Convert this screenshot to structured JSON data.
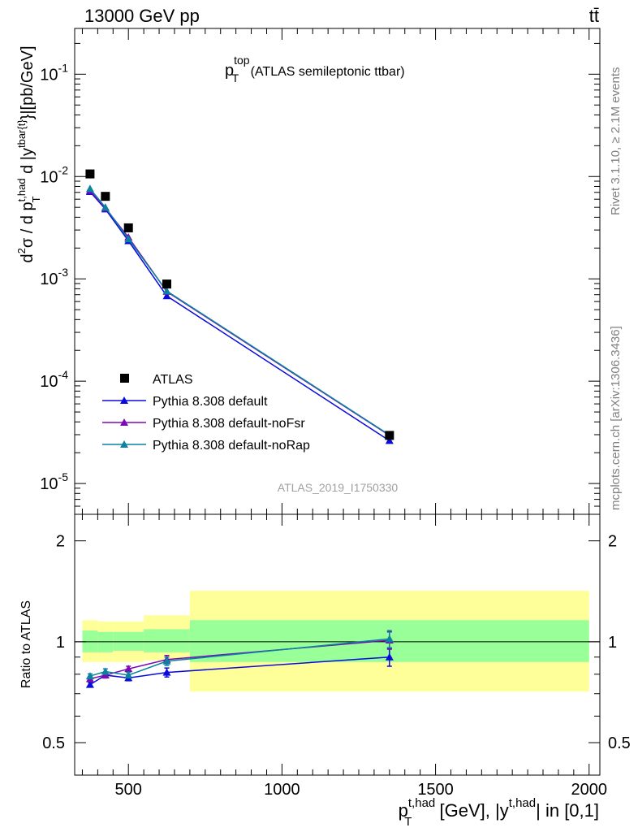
{
  "header": {
    "left": "13000 GeV pp",
    "right": "tt̄"
  },
  "side_labels": {
    "rivet": "Rivet 3.1.10, ≥ 2.1M events",
    "mcplots": "mcplots.cern.ch [arXiv:1306.3436]"
  },
  "chart_data": [
    {
      "type": "line",
      "panel": "main",
      "title_main": "p",
      "title_sup": "top",
      "title_sub": "T",
      "title_rest": " (ATLAS semileptonic ttbar)",
      "watermark": "ATLAS_2019_I1750330",
      "ylabel": "d²σ / d pT^t,had d |y^tbar{t}|[pb/GeV]",
      "yscale": "log",
      "ylim": [
        5e-06,
        0.28
      ],
      "xlim": [
        325,
        2035
      ],
      "y_tick_labels": {
        "1e-1": "10^-1",
        "1e-2": "10^-2",
        "1e-3": "10^-3",
        "1e-4": "10^-4",
        "1e-5": "10^-5"
      },
      "legend_position": "center-left",
      "series": [
        {
          "name": "ATLAS",
          "marker": "square",
          "color": "#000000",
          "x": [
            375,
            425,
            500,
            625,
            1350
          ],
          "y": [
            0.0106,
            0.0064,
            0.00315,
            0.00089,
            2.95e-05
          ]
        },
        {
          "name": "Pythia 8.308 default",
          "marker": "triangle",
          "color": "#0a0adc",
          "x": [
            375,
            425,
            500,
            625,
            1350
          ],
          "y": [
            0.0071,
            0.0048,
            0.00235,
            0.00068,
            2.62e-05
          ]
        },
        {
          "name": "Pythia 8.308 default-noFsr",
          "marker": "triangle",
          "color": "#7d0ab4",
          "x": [
            375,
            425,
            500,
            625,
            1350
          ],
          "y": [
            0.0073,
            0.0049,
            0.00255,
            0.00075,
            2.95e-05
          ]
        },
        {
          "name": "Pythia 8.308 default-noRap",
          "marker": "triangle",
          "color": "#0a82a0",
          "x": [
            375,
            425,
            500,
            625,
            1350
          ],
          "y": [
            0.0076,
            0.005,
            0.00245,
            0.00076,
            2.98e-05
          ]
        }
      ]
    },
    {
      "type": "line",
      "panel": "ratio",
      "ylabel": "Ratio to ATLAS",
      "xlabel": "pT^t,had [GeV], |y^t,had| in [0,1]",
      "xlabel_parts": {
        "p": "p",
        "sub": "T",
        "sup1": "t,had",
        "mid": " [GeV], |y",
        "sup2": "t,had",
        "end": "| in [0,1]"
      },
      "xlim": [
        325,
        2035
      ],
      "ylim": [
        0.4,
        2.4
      ],
      "yscale": "log",
      "x_ticks": [
        500,
        1000,
        1500,
        2000
      ],
      "x_tick_labels": [
        "500",
        "1000",
        "1500",
        "2000"
      ],
      "y_ticks": [
        0.5,
        1,
        2
      ],
      "y_tick_labels": [
        "0.5",
        "1",
        "2"
      ],
      "bins": [
        {
          "x0": 350,
          "x1": 400,
          "total_lo": 0.87,
          "total_hi": 1.16,
          "stat_lo": 0.93,
          "stat_hi": 1.08
        },
        {
          "x0": 400,
          "x1": 450,
          "total_lo": 0.87,
          "total_hi": 1.15,
          "stat_lo": 0.93,
          "stat_hi": 1.07
        },
        {
          "x0": 450,
          "x1": 550,
          "total_lo": 0.87,
          "total_hi": 1.15,
          "stat_lo": 0.94,
          "stat_hi": 1.07
        },
        {
          "x0": 550,
          "x1": 700,
          "total_lo": 0.88,
          "total_hi": 1.2,
          "stat_lo": 0.93,
          "stat_hi": 1.09
        },
        {
          "x0": 700,
          "x1": 2000,
          "total_lo": 0.71,
          "total_hi": 1.42,
          "stat_lo": 0.87,
          "stat_hi": 1.16
        }
      ],
      "series": [
        {
          "name": "Pythia 8.308 default",
          "color": "#0a0adc",
          "x": [
            375,
            425,
            500,
            625,
            1350
          ],
          "y": [
            0.745,
            0.795,
            0.78,
            0.81,
            0.9
          ],
          "err": [
            0.012,
            0.015,
            0.015,
            0.025,
            0.055
          ]
        },
        {
          "name": "Pythia 8.308 default-noFsr",
          "color": "#7d0ab4",
          "x": [
            375,
            425,
            500,
            625,
            1350
          ],
          "y": [
            0.775,
            0.795,
            0.83,
            0.885,
            1.01
          ],
          "err": [
            0.012,
            0.015,
            0.015,
            0.025,
            0.06
          ]
        },
        {
          "name": "Pythia 8.308 default-noRap",
          "color": "#0a82a0",
          "x": [
            375,
            425,
            500,
            625,
            1350
          ],
          "y": [
            0.79,
            0.815,
            0.795,
            0.875,
            1.02
          ],
          "err": [
            0.012,
            0.015,
            0.015,
            0.025,
            0.06
          ]
        }
      ]
    }
  ]
}
